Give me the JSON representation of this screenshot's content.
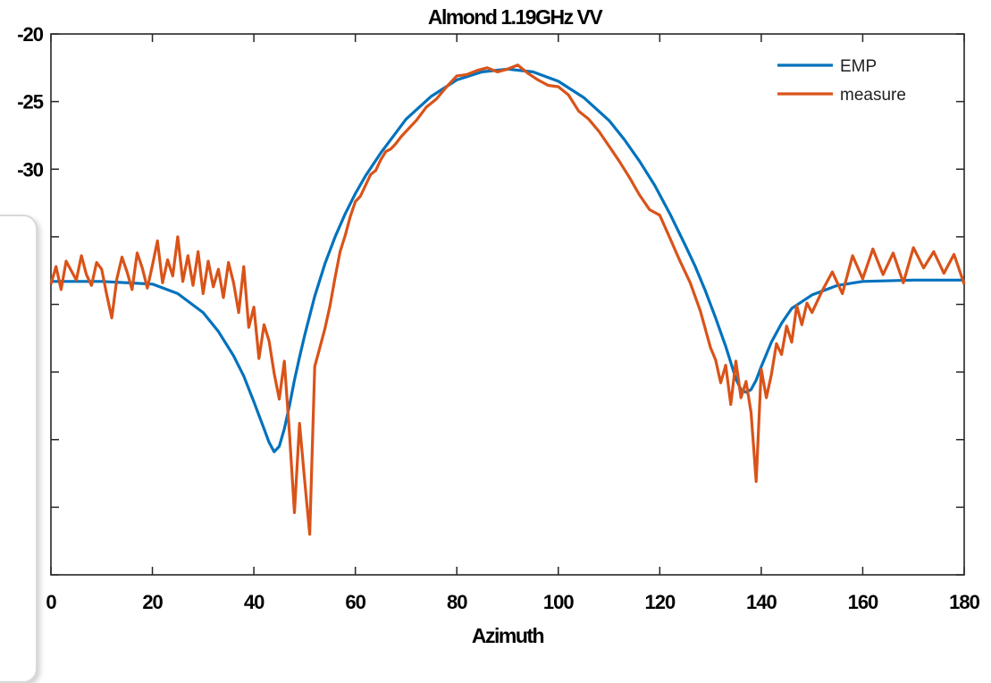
{
  "chart_data": {
    "type": "line",
    "title": "Almond 1.19GHz VV",
    "xlabel": "Azimuth",
    "ylabel": "",
    "xlim": [
      0,
      180
    ],
    "ylim": [
      -60,
      -20
    ],
    "xticks": [
      0,
      20,
      40,
      60,
      80,
      100,
      120,
      140,
      160,
      180
    ],
    "yticks_labeled": [
      -20,
      -25,
      -30
    ],
    "yticks": [
      -20,
      -25,
      -30,
      -35,
      -40,
      -45,
      -50,
      -55,
      -60
    ],
    "grid": false,
    "legend": "top-right",
    "series": [
      {
        "name": "EMP",
        "color": "#0072BD",
        "x": [
          0,
          10,
          20,
          25,
          30,
          33,
          36,
          38,
          40,
          42,
          43,
          44,
          45,
          46,
          47,
          48,
          49,
          50,
          52,
          54,
          56,
          58,
          60,
          62,
          65,
          68,
          70,
          75,
          80,
          85,
          90,
          95,
          100,
          105,
          110,
          113,
          116,
          119,
          122,
          125,
          127,
          129,
          131,
          133,
          134,
          135,
          136,
          137,
          138,
          139,
          140,
          142,
          144,
          146,
          150,
          155,
          160,
          170,
          180
        ],
        "y": [
          -38.3,
          -38.3,
          -38.5,
          -39.2,
          -40.6,
          -42.0,
          -43.8,
          -45.3,
          -47.2,
          -49.2,
          -50.2,
          -50.9,
          -50.5,
          -49.2,
          -47.5,
          -45.6,
          -43.9,
          -42.3,
          -39.4,
          -37.0,
          -35.0,
          -33.3,
          -31.8,
          -30.5,
          -28.8,
          -27.3,
          -26.3,
          -24.6,
          -23.4,
          -22.8,
          -22.6,
          -22.8,
          -23.5,
          -24.7,
          -26.4,
          -27.8,
          -29.4,
          -31.2,
          -33.3,
          -35.6,
          -37.2,
          -39.0,
          -41.0,
          -43.1,
          -44.3,
          -45.5,
          -46.3,
          -46.5,
          -46.3,
          -45.6,
          -44.6,
          -42.8,
          -41.4,
          -40.3,
          -39.3,
          -38.6,
          -38.3,
          -38.2,
          -38.2
        ]
      },
      {
        "name": "measure",
        "color": "#D95319",
        "x": [
          0,
          1,
          2,
          3,
          4,
          5,
          6,
          7,
          8,
          9,
          10,
          11,
          12,
          13,
          14,
          15,
          16,
          17,
          18,
          19,
          20,
          21,
          22,
          23,
          24,
          25,
          26,
          27,
          28,
          29,
          30,
          31,
          32,
          33,
          34,
          35,
          36,
          37,
          38,
          39,
          40,
          41,
          42,
          43,
          44,
          45,
          46,
          47,
          48,
          49,
          50,
          51,
          52,
          53,
          54,
          55,
          56,
          57,
          58,
          59,
          60,
          61,
          62,
          63,
          64,
          65,
          66,
          67,
          68,
          69,
          70,
          72,
          74,
          76,
          78,
          80,
          82,
          84,
          86,
          88,
          90,
          92,
          94,
          96,
          98,
          100,
          102,
          104,
          106,
          108,
          110,
          112,
          114,
          116,
          118,
          120,
          122,
          124,
          126,
          128,
          130,
          131,
          132,
          133,
          134,
          135,
          136,
          137,
          138,
          139,
          140,
          141,
          142,
          143,
          144,
          145,
          146,
          147,
          148,
          149,
          150,
          152,
          154,
          156,
          158,
          160,
          162,
          164,
          166,
          168,
          170,
          172,
          174,
          176,
          178,
          180
        ],
        "y": [
          -38.5,
          -37.2,
          -38.9,
          -36.8,
          -37.5,
          -38.2,
          -36.4,
          -37.8,
          -38.6,
          -36.9,
          -37.4,
          -39.3,
          -41.0,
          -38.1,
          -36.5,
          -37.6,
          -38.9,
          -36.2,
          -37.3,
          -38.8,
          -37.1,
          -35.3,
          -38.4,
          -36.7,
          -37.9,
          -35.0,
          -38.3,
          -36.4,
          -38.6,
          -36.1,
          -39.2,
          -36.8,
          -38.7,
          -37.4,
          -39.5,
          -36.9,
          -38.4,
          -40.6,
          -37.2,
          -41.7,
          -40.2,
          -44.0,
          -41.5,
          -42.7,
          -45.1,
          -47.0,
          -44.2,
          -49.5,
          -55.4,
          -48.8,
          -53.0,
          -57.0,
          -44.6,
          -43.2,
          -41.8,
          -40.1,
          -38.0,
          -36.1,
          -34.9,
          -33.5,
          -32.4,
          -32.0,
          -31.2,
          -30.4,
          -30.1,
          -29.3,
          -28.7,
          -28.5,
          -28.1,
          -27.6,
          -27.2,
          -26.4,
          -25.4,
          -24.8,
          -23.9,
          -23.1,
          -23.0,
          -22.7,
          -22.5,
          -22.8,
          -22.6,
          -22.3,
          -22.9,
          -23.4,
          -23.8,
          -23.9,
          -24.5,
          -25.7,
          -26.3,
          -27.2,
          -28.3,
          -29.4,
          -30.6,
          -31.9,
          -33.0,
          -33.4,
          -35.1,
          -36.8,
          -38.4,
          -40.5,
          -43.2,
          -44.1,
          -45.8,
          -44.5,
          -47.4,
          -44.2,
          -46.9,
          -45.7,
          -48.0,
          -53.1,
          -44.8,
          -46.9,
          -45.2,
          -42.9,
          -43.7,
          -41.6,
          -42.8,
          -40.1,
          -41.5,
          -39.9,
          -40.6,
          -39.0,
          -37.6,
          -39.2,
          -36.4,
          -38.1,
          -35.9,
          -37.8,
          -36.2,
          -38.4,
          -35.8,
          -37.3,
          -36.1,
          -37.7,
          -36.3,
          -38.5
        ]
      }
    ]
  }
}
